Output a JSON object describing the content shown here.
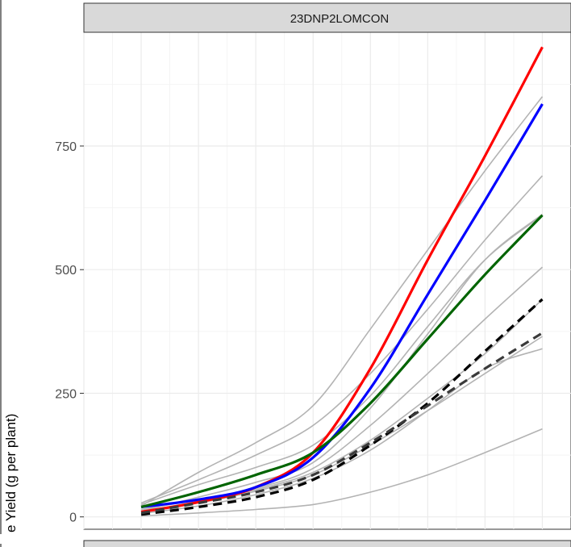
{
  "chart_data": {
    "type": "line",
    "facet_label": "23DNP2LOMCON",
    "ylabel": "e Yield (g per plant)",
    "xlabel": "",
    "x": [
      0,
      1,
      2,
      3,
      4,
      5,
      6,
      7
    ],
    "ylim": [
      -25,
      980
    ],
    "xlim": [
      -1,
      7.5
    ],
    "y_ticks": [
      0,
      250,
      500,
      750
    ],
    "y_tick_labels": [
      "0",
      "250",
      "500",
      "750"
    ],
    "grid": true,
    "background_series": [
      {
        "color": "#b3b3b3",
        "values": [
          28,
          75,
          125,
          185,
          290,
          420,
          560,
          690
        ]
      },
      {
        "color": "#b3b3b3",
        "values": [
          22,
          90,
          150,
          225,
          380,
          540,
          700,
          850
        ]
      },
      {
        "color": "#b3b3b3",
        "values": [
          25,
          65,
          100,
          145,
          245,
          385,
          520,
          610
        ]
      },
      {
        "color": "#b3b3b3",
        "values": [
          12,
          40,
          70,
          110,
          220,
          370,
          520,
          612
        ]
      },
      {
        "color": "#b3b3b3",
        "values": [
          15,
          35,
          58,
          98,
          185,
          290,
          400,
          505
        ]
      },
      {
        "color": "#b3b3b3",
        "values": [
          10,
          32,
          55,
          90,
          155,
          240,
          330,
          440
        ]
      },
      {
        "color": "#b3b3b3",
        "values": [
          8,
          28,
          52,
          85,
          145,
          215,
          290,
          365
        ]
      },
      {
        "color": "#b3b3b3",
        "values": [
          7,
          22,
          45,
          78,
          135,
          215,
          300,
          340
        ]
      },
      {
        "color": "#b3b3b3",
        "values": [
          2,
          8,
          15,
          25,
          50,
          85,
          130,
          178
        ]
      }
    ],
    "highlight_series": [
      {
        "color": "#ff0000",
        "dash": "",
        "values": [
          10,
          30,
          60,
          130,
          300,
          520,
          730,
          950
        ]
      },
      {
        "color": "#0000ff",
        "dash": "",
        "values": [
          20,
          35,
          60,
          120,
          260,
          450,
          640,
          835
        ]
      },
      {
        "color": "#006400",
        "dash": "",
        "values": [
          20,
          50,
          85,
          130,
          230,
          360,
          490,
          610
        ]
      },
      {
        "color": "#000000",
        "dash": "11 7",
        "values": [
          5,
          20,
          40,
          75,
          145,
          230,
          335,
          440
        ]
      },
      {
        "color": "#3a3a3a",
        "dash": "11 7",
        "values": [
          8,
          28,
          50,
          85,
          150,
          225,
          300,
          372
        ]
      }
    ]
  }
}
